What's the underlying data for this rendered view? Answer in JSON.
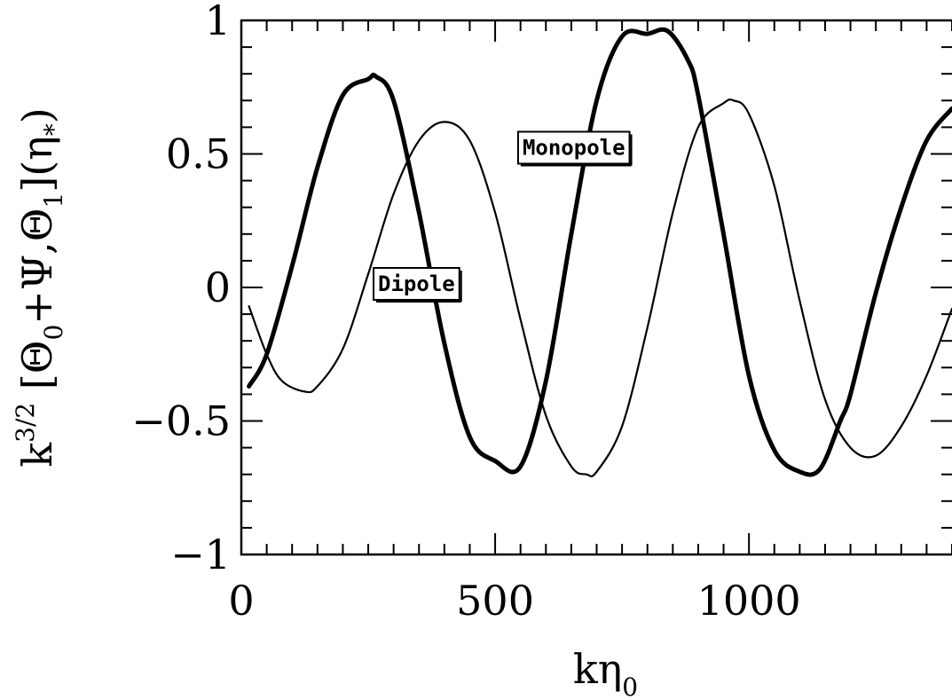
{
  "chart_data": {
    "type": "line",
    "xlim": [
      0,
      1400
    ],
    "ylim": [
      -1,
      1
    ],
    "xticks": [
      0,
      500,
      1000
    ],
    "xtick_labels": [
      "0",
      "500",
      "1000"
    ],
    "yticks": [
      -1,
      -0.5,
      0,
      0.5,
      1
    ],
    "ytick_labels": [
      "−1",
      "−0.5",
      "0",
      "0.5",
      "1"
    ],
    "xlabel": {
      "main": "kη",
      "sub": "0"
    },
    "ylabel": {
      "k": "k",
      "exp": "3/2",
      "bracket_open": " [Θ",
      "sub0": "0",
      "mid": "+Ψ,Θ",
      "sub1": "1",
      "bracket_close": "](η",
      "star": "*",
      "end": ")"
    },
    "grid": false,
    "series": [
      {
        "name": "Monopole",
        "line_width": "thick",
        "x": [
          15,
          50,
          100,
          150,
          200,
          250,
          265,
          300,
          350,
          400,
          450,
          500,
          550,
          600,
          650,
          700,
          750,
          800,
          840,
          880,
          900,
          950,
          1000,
          1050,
          1100,
          1140,
          1180,
          1200,
          1250,
          1300,
          1350,
          1400
        ],
        "y": [
          -0.37,
          -0.25,
          0.08,
          0.45,
          0.72,
          0.78,
          0.79,
          0.7,
          0.28,
          -0.21,
          -0.56,
          -0.65,
          -0.67,
          -0.35,
          0.2,
          0.7,
          0.94,
          0.95,
          0.96,
          0.85,
          0.72,
          0.2,
          -0.33,
          -0.61,
          -0.69,
          -0.68,
          -0.5,
          -0.4,
          -0.02,
          0.3,
          0.55,
          0.67
        ]
      },
      {
        "name": "Dipole",
        "line_width": "thin",
        "x": [
          15,
          50,
          80,
          125,
          150,
          200,
          250,
          300,
          350,
          400,
          450,
          500,
          550,
          600,
          650,
          680,
          700,
          750,
          800,
          850,
          900,
          950,
          970,
          1000,
          1050,
          1100,
          1150,
          1200,
          1250,
          1300,
          1350,
          1400
        ],
        "y": [
          -0.07,
          -0.25,
          -0.35,
          -0.39,
          -0.37,
          -0.23,
          0.05,
          0.35,
          0.55,
          0.62,
          0.55,
          0.28,
          -0.12,
          -0.48,
          -0.67,
          -0.7,
          -0.69,
          -0.52,
          -0.15,
          0.28,
          0.6,
          0.69,
          0.7,
          0.65,
          0.38,
          -0.05,
          -0.42,
          -0.6,
          -0.63,
          -0.52,
          -0.33,
          -0.08
        ]
      }
    ],
    "annotations": [
      {
        "text": "Monopole",
        "x": 655,
        "y": 0.52
      },
      {
        "text": "Dipole",
        "x": 345,
        "y": 0.01
      }
    ]
  }
}
